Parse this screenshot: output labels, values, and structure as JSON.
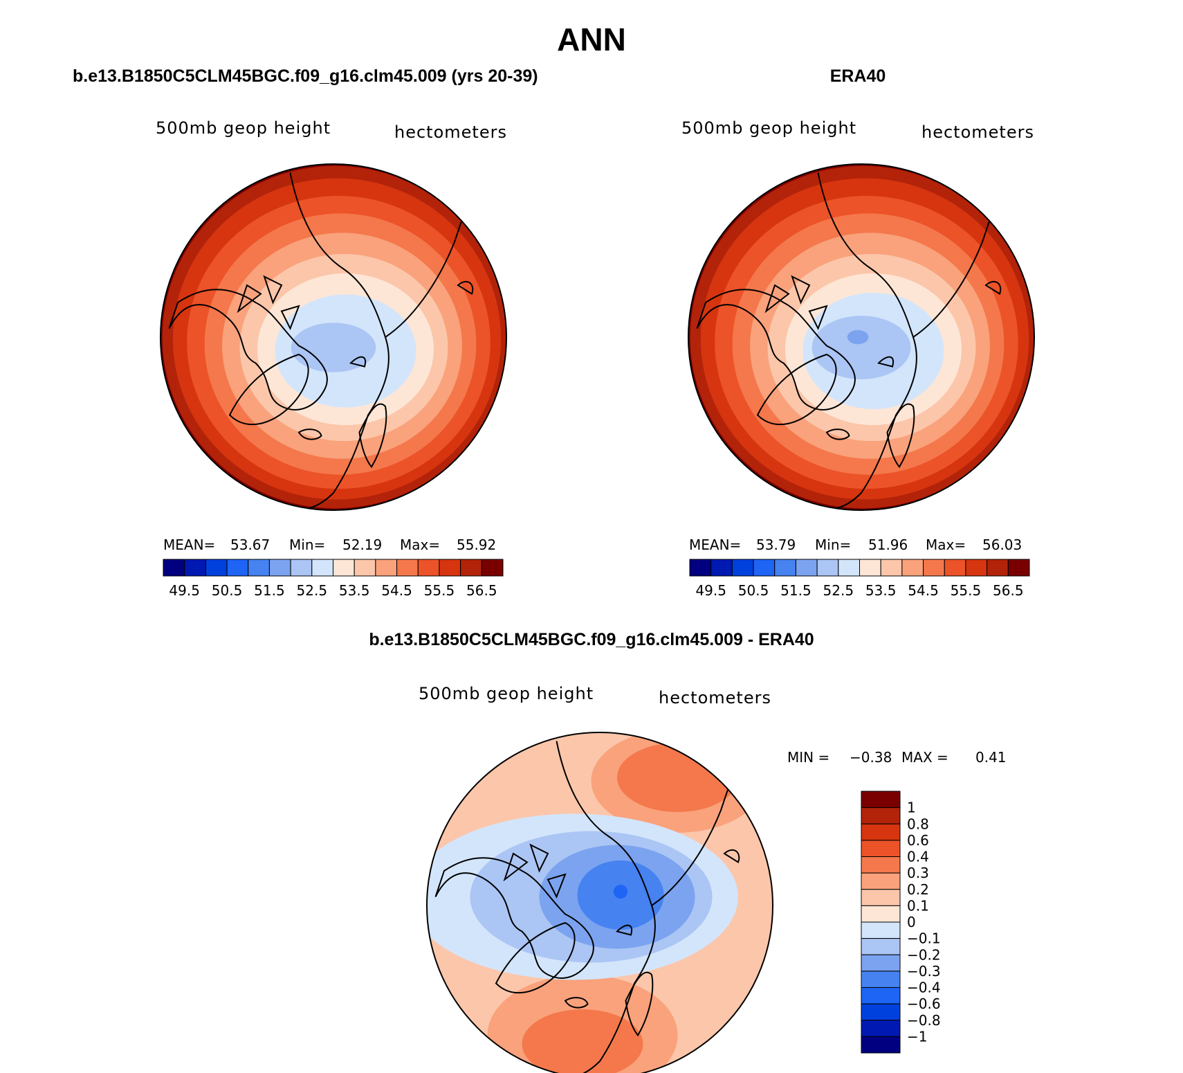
{
  "figure": {
    "season": "ANN"
  },
  "palette": {
    "colors": [
      "#000080",
      "#0019b2",
      "#0040dd",
      "#1e64f5",
      "#4682f0",
      "#7ba3ef",
      "#abc5f4",
      "#d3e5fb",
      "#fde6d6",
      "#fcc6aa",
      "#f9a27c",
      "#f4784b",
      "#ec5328",
      "#d6350f",
      "#b2230a",
      "#7a0000"
    ],
    "land_outline": "#000000"
  },
  "panels": {
    "model": {
      "title": "b.e13.B1850C5CLM45BGC.f09_g16.clm45.009 (yrs 20-39)",
      "field_label": "500mb geop height",
      "units_label": "hectometers",
      "mean_label": "MEAN=",
      "mean": "53.67",
      "min_label": "Min=",
      "min": "52.19",
      "max_label": "Max=",
      "max": "55.92"
    },
    "obs": {
      "title": "ERA40",
      "field_label": "500mb geop height",
      "units_label": "hectometers",
      "mean_label": "MEAN=",
      "mean": "53.79",
      "min_label": "Min=",
      "min": "51.96",
      "max_label": "Max=",
      "max": "56.03"
    },
    "diff": {
      "title": "b.e13.B1850C5CLM45BGC.f09_g16.clm45.009 - ERA40",
      "field_label": "500mb geop height",
      "units_label": "hectometers",
      "min_label": "MIN =",
      "min": "−0.38",
      "max_label": "MAX =",
      "max": "0.41"
    }
  },
  "chart_data": [
    {
      "type": "heatmap",
      "projection": "north-polar-stereographic",
      "title": "b.e13.B1850C5CLM45BGC.f09_g16.clm45.009 (yrs 20-39)",
      "variable": "500mb geop height",
      "units": "hectometers",
      "stats": {
        "mean": 53.67,
        "min": 52.19,
        "max": 55.92
      },
      "colorbar": {
        "orientation": "horizontal",
        "tick_labels": [
          "49.5",
          "50.5",
          "51.5",
          "52.5",
          "53.5",
          "54.5",
          "55.5",
          "56.5"
        ],
        "levels": [
          49.5,
          50,
          50.5,
          51,
          51.5,
          52,
          52.5,
          53,
          53.5,
          54,
          54.5,
          55,
          55.5,
          56,
          56.5
        ]
      },
      "contour_fill": [
        {
          "level_index": 15,
          "rx": 1.0,
          "ry": 1.0,
          "dx": 0.0,
          "dy": 0.0
        },
        {
          "level_index": 14,
          "rx": 0.98,
          "ry": 0.97,
          "dx": 0.01,
          "dy": 0.0
        },
        {
          "level_index": 13,
          "rx": 0.93,
          "ry": 0.91,
          "dx": 0.02,
          "dy": 0.01
        },
        {
          "level_index": 12,
          "rx": 0.86,
          "ry": 0.83,
          "dx": 0.03,
          "dy": 0.03
        },
        {
          "level_index": 11,
          "rx": 0.77,
          "ry": 0.74,
          "dx": 0.04,
          "dy": 0.04
        },
        {
          "level_index": 10,
          "rx": 0.68,
          "ry": 0.64,
          "dx": 0.05,
          "dy": 0.05
        },
        {
          "level_index": 9,
          "rx": 0.59,
          "ry": 0.53,
          "dx": 0.06,
          "dy": 0.06
        },
        {
          "level_index": 8,
          "rx": 0.5,
          "ry": 0.43,
          "dx": 0.07,
          "dy": 0.07
        },
        {
          "level_index": 7,
          "rx": 0.4,
          "ry": 0.32,
          "dx": 0.07,
          "dy": 0.08
        },
        {
          "level_index": 6,
          "rx": 0.24,
          "ry": 0.14,
          "dx": 0.0,
          "dy": 0.06
        }
      ]
    },
    {
      "type": "heatmap",
      "projection": "north-polar-stereographic",
      "title": "ERA40",
      "variable": "500mb geop height",
      "units": "hectometers",
      "stats": {
        "mean": 53.79,
        "min": 51.96,
        "max": 56.03
      },
      "colorbar": {
        "orientation": "horizontal",
        "tick_labels": [
          "49.5",
          "50.5",
          "51.5",
          "52.5",
          "53.5",
          "54.5",
          "55.5",
          "56.5"
        ],
        "levels": [
          49.5,
          50,
          50.5,
          51,
          51.5,
          52,
          52.5,
          53,
          53.5,
          54,
          54.5,
          55,
          55.5,
          56,
          56.5
        ]
      },
      "contour_fill": [
        {
          "level_index": 15,
          "rx": 1.0,
          "ry": 1.0,
          "dx": 0.0,
          "dy": 0.0
        },
        {
          "level_index": 14,
          "rx": 0.98,
          "ry": 0.97,
          "dx": 0.01,
          "dy": 0.0
        },
        {
          "level_index": 13,
          "rx": 0.93,
          "ry": 0.91,
          "dx": 0.02,
          "dy": 0.01
        },
        {
          "level_index": 12,
          "rx": 0.86,
          "ry": 0.83,
          "dx": 0.03,
          "dy": 0.03
        },
        {
          "level_index": 11,
          "rx": 0.77,
          "ry": 0.74,
          "dx": 0.04,
          "dy": 0.04
        },
        {
          "level_index": 10,
          "rx": 0.68,
          "ry": 0.64,
          "dx": 0.05,
          "dy": 0.05
        },
        {
          "level_index": 9,
          "rx": 0.59,
          "ry": 0.53,
          "dx": 0.06,
          "dy": 0.06
        },
        {
          "level_index": 8,
          "rx": 0.5,
          "ry": 0.43,
          "dx": 0.07,
          "dy": 0.07
        },
        {
          "level_index": 7,
          "rx": 0.4,
          "ry": 0.33,
          "dx": 0.07,
          "dy": 0.08
        },
        {
          "level_index": 6,
          "rx": 0.28,
          "ry": 0.18,
          "dx": 0.0,
          "dy": 0.06
        },
        {
          "level_index": 5,
          "rx": 0.06,
          "ry": 0.04,
          "dx": -0.02,
          "dy": 0.0
        }
      ]
    },
    {
      "type": "heatmap",
      "projection": "north-polar-stereographic",
      "title": "b.e13.B1850C5CLM45BGC.f09_g16.clm45.009 - ERA40",
      "variable": "500mb geop height",
      "units": "hectometers",
      "stats": {
        "min": -0.38,
        "max": 0.41
      },
      "colorbar": {
        "orientation": "vertical",
        "tick_labels": [
          "1",
          "0.8",
          "0.6",
          "0.4",
          "0.3",
          "0.2",
          "0.1",
          "0",
          "−0.1",
          "−0.2",
          "−0.3",
          "−0.4",
          "−0.6",
          "−0.8",
          "−1"
        ],
        "levels": [
          1,
          0.8,
          0.6,
          0.4,
          0.3,
          0.2,
          0.1,
          0,
          -0.1,
          -0.2,
          -0.3,
          -0.4,
          -0.6,
          -0.8,
          -1
        ]
      },
      "contour_fill": [
        {
          "level_index": 6,
          "rx": 1.0,
          "ry": 1.0,
          "dx": 0.0,
          "dy": 0.0
        },
        {
          "level_index": 5,
          "cx": 0.45,
          "cy": -0.72,
          "rx": 0.5,
          "ry": 0.3
        },
        {
          "level_index": 5,
          "cx": -0.1,
          "cy": 0.75,
          "rx": 0.55,
          "ry": 0.35
        },
        {
          "level_index": 4,
          "cx": 0.45,
          "cy": -0.74,
          "rx": 0.35,
          "ry": 0.2
        },
        {
          "level_index": 4,
          "cx": -0.1,
          "cy": 0.8,
          "rx": 0.35,
          "ry": 0.2
        },
        {
          "level_index": 8,
          "cx": -0.15,
          "cy": -0.05,
          "rx": 0.95,
          "ry": 0.48
        },
        {
          "level_index": 9,
          "cx": -0.05,
          "cy": -0.05,
          "rx": 0.7,
          "ry": 0.38
        },
        {
          "level_index": 10,
          "cx": 0.1,
          "cy": -0.05,
          "rx": 0.45,
          "ry": 0.3
        },
        {
          "level_index": 11,
          "cx": 0.12,
          "cy": -0.06,
          "rx": 0.25,
          "ry": 0.2
        },
        {
          "level_index": 12,
          "cx": 0.12,
          "cy": -0.08,
          "rx": 0.04,
          "ry": 0.04
        }
      ]
    }
  ]
}
